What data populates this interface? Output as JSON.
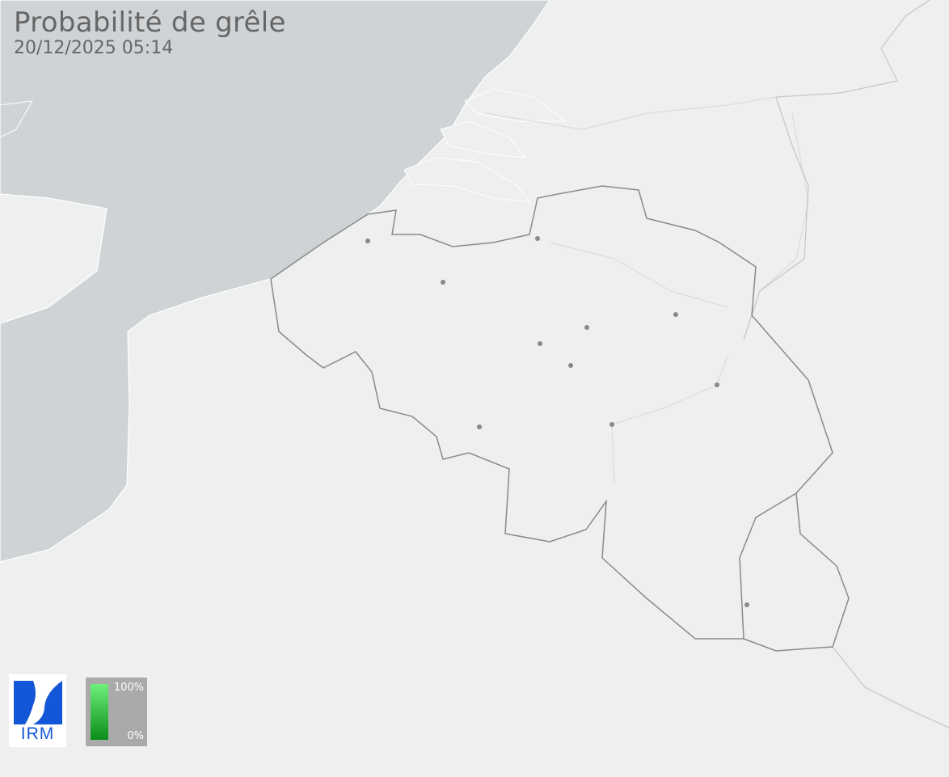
{
  "header": {
    "title": "Probabilité de grêle",
    "timestamp": "20/12/2025 05:14"
  },
  "legend": {
    "max_label": "100%",
    "min_label": "0%",
    "color_max": "#6ef07a",
    "color_min": "#0a8c18"
  },
  "logo": {
    "text": "IRM",
    "color": "#1456d8"
  },
  "colors": {
    "sea": "#d0d3d5",
    "land": "#eeefef",
    "border": "#8a8a8a",
    "city": "#888888"
  }
}
